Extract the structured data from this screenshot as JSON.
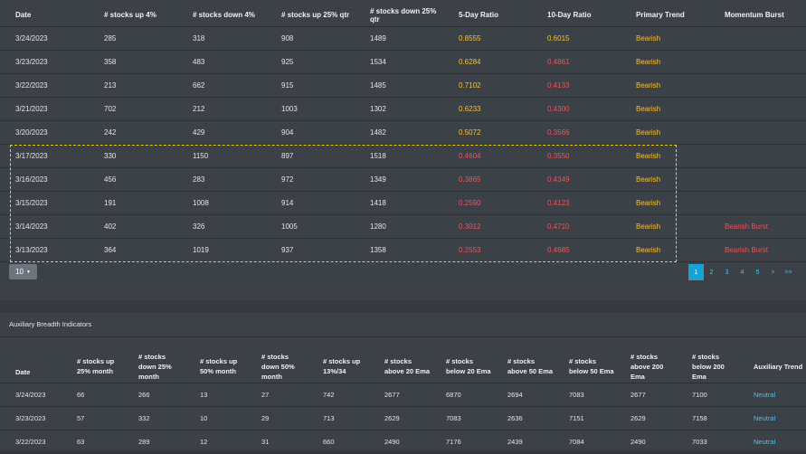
{
  "main_table": {
    "columns": [
      "Date",
      "# stocks up 4%",
      "# stocks down 4%",
      "# stocks up 25% qtr",
      "# stocks down 25% qtr",
      "5-Day Ratio",
      "10-Day Ratio",
      "Primary Trend",
      "Momentum Burst"
    ],
    "rows": [
      {
        "date": "3/24/2023",
        "up4": "285",
        "down4": "318",
        "up25q": "908",
        "down25q": "1489",
        "r5": "0.8555",
        "r10": "0.6015",
        "trend": "Bearish",
        "burst": "",
        "r5c": "yel",
        "r10c": "yel"
      },
      {
        "date": "3/23/2023",
        "up4": "358",
        "down4": "483",
        "up25q": "925",
        "down25q": "1534",
        "r5": "0.6284",
        "r10": "0.4861",
        "trend": "Bearish",
        "burst": "",
        "r5c": "yel",
        "r10c": "red"
      },
      {
        "date": "3/22/2023",
        "up4": "213",
        "down4": "662",
        "up25q": "915",
        "down25q": "1485",
        "r5": "0.7102",
        "r10": "0.4133",
        "trend": "Bearish",
        "burst": "",
        "r5c": "yel",
        "r10c": "red"
      },
      {
        "date": "3/21/2023",
        "up4": "702",
        "down4": "212",
        "up25q": "1003",
        "down25q": "1302",
        "r5": "0.6233",
        "r10": "0.4300",
        "trend": "Bearish",
        "burst": "",
        "r5c": "yel",
        "r10c": "red"
      },
      {
        "date": "3/20/2023",
        "up4": "242",
        "down4": "429",
        "up25q": "904",
        "down25q": "1482",
        "r5": "0.5072",
        "r10": "0.3566",
        "trend": "Bearish",
        "burst": "",
        "r5c": "yel",
        "r10c": "red"
      },
      {
        "date": "3/17/2023",
        "up4": "330",
        "down4": "1150",
        "up25q": "897",
        "down25q": "1518",
        "r5": "0.4604",
        "r10": "0.3550",
        "trend": "Bearish",
        "burst": "",
        "r5c": "red",
        "r10c": "red"
      },
      {
        "date": "3/16/2023",
        "up4": "456",
        "down4": "283",
        "up25q": "972",
        "down25q": "1349",
        "r5": "0.3865",
        "r10": "0.4349",
        "trend": "Bearish",
        "burst": "",
        "r5c": "red",
        "r10c": "red"
      },
      {
        "date": "3/15/2023",
        "up4": "191",
        "down4": "1008",
        "up25q": "914",
        "down25q": "1418",
        "r5": "0.2590",
        "r10": "0.4123",
        "trend": "Bearish",
        "burst": "",
        "r5c": "red",
        "r10c": "red"
      },
      {
        "date": "3/14/2023",
        "up4": "402",
        "down4": "326",
        "up25q": "1005",
        "down25q": "1280",
        "r5": "0.3012",
        "r10": "0.4710",
        "trend": "Bearish",
        "burst": "Bearish Burst",
        "r5c": "red",
        "r10c": "red"
      },
      {
        "date": "3/13/2023",
        "up4": "364",
        "down4": "1019",
        "up25q": "937",
        "down25q": "1358",
        "r5": "0.2553",
        "r10": "0.4685",
        "trend": "Bearish",
        "burst": "Bearish Burst",
        "r5c": "red",
        "r10c": "red"
      }
    ]
  },
  "page_size": "10",
  "pagination": [
    "1",
    "2",
    "3",
    "4",
    "5",
    ">",
    ">>"
  ],
  "aux": {
    "title": "Auxiliary Breadth Indicators",
    "columns": [
      "Date",
      "# stocks up 25% month",
      "# stocks down 25% month",
      "# stocks up 50% month",
      "# stocks down 50% month",
      "# stocks up 13%/34",
      "# stocks above 20 Ema",
      "# stocks below 20 Ema",
      "# stocks above 50 Ema",
      "# stocks below 50 Ema",
      "# stocks above 200 Ema",
      "# stocks below 200 Ema",
      "Auxiliary Trend"
    ],
    "rows": [
      {
        "date": "3/24/2023",
        "c1": "66",
        "c2": "266",
        "c3": "13",
        "c4": "27",
        "c5": "742",
        "c6": "2677",
        "c7": "6870",
        "c8": "2694",
        "c9": "7083",
        "c10": "2677",
        "c11": "7100",
        "trend": "Neutral"
      },
      {
        "date": "3/23/2023",
        "c1": "57",
        "c2": "332",
        "c3": "10",
        "c4": "29",
        "c5": "713",
        "c6": "2629",
        "c7": "7083",
        "c8": "2636",
        "c9": "7151",
        "c10": "2629",
        "c11": "7158",
        "trend": "Neutral"
      },
      {
        "date": "3/22/2023",
        "c1": "63",
        "c2": "289",
        "c3": "12",
        "c4": "31",
        "c5": "660",
        "c6": "2490",
        "c7": "7176",
        "c8": "2439",
        "c9": "7084",
        "c10": "2490",
        "c11": "7033",
        "trend": "Neutral"
      }
    ]
  },
  "colors": {
    "ratio_high": "#f7c32e",
    "ratio_low": "#f0525a",
    "trend_bearish": "#f7c32e",
    "burst": "#f0525a",
    "neutral": "#4fc3e6",
    "active_page": "#17a2d8"
  }
}
